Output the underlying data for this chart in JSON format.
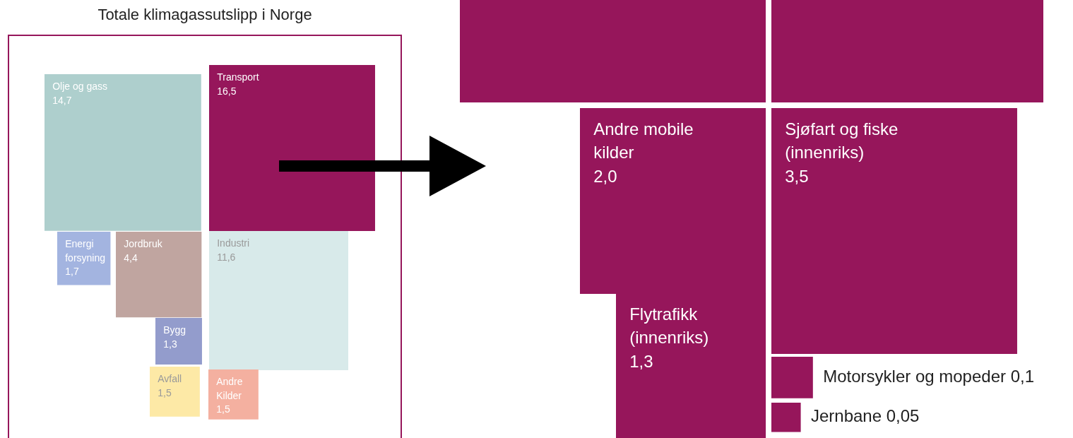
{
  "chart_data": [
    {
      "type": "other",
      "title": "Totale klimagassutslipp i Norge",
      "categories": [
        "Olje og gass",
        "Transport",
        "Energi forsyning",
        "Jordbruk",
        "Industri",
        "Bygg",
        "Avfall",
        "Andre Kilder"
      ],
      "values": [
        14.7,
        16.5,
        1.7,
        4.4,
        11.6,
        1.3,
        1.5,
        1.5
      ],
      "value_labels": [
        "14,7",
        "16,5",
        "1,7",
        "4,4",
        "11,6",
        "1,3",
        "1,5",
        "1,5"
      ],
      "colors": [
        "#aecfcd",
        "#96165b",
        "#a3b4e0",
        "#c0a5a0",
        "#d8eaea",
        "#939ccc",
        "#fde9a6",
        "#f4b0a0"
      ]
    },
    {
      "type": "other",
      "categories": [
        "Andre mobile kilder",
        "Sjøfart og fiske (innenriks)",
        "Flytrafikk (innenriks)",
        "Motorsykler og mopeder",
        "Jernbane"
      ],
      "values": [
        2.0,
        3.5,
        1.3,
        0.1,
        0.05
      ],
      "value_labels": [
        "2,0",
        "3,5",
        "1,3",
        "0,1",
        "0,05"
      ],
      "colors": [
        "#96165b",
        "#96165b",
        "#96165b",
        "#96165b",
        "#96165b"
      ]
    }
  ]
}
